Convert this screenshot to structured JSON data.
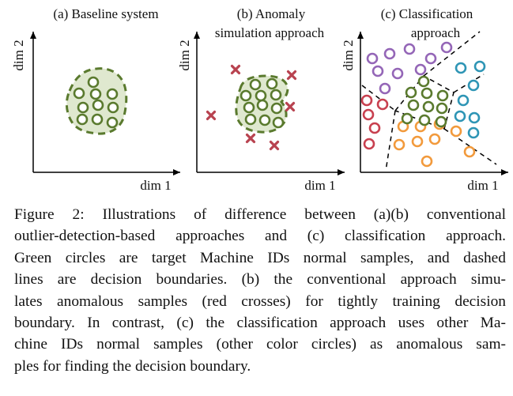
{
  "figure": {
    "panels": [
      {
        "title_lines": [
          "(a) Baseline system"
        ],
        "xlabel": "dim 1",
        "ylabel": "dim 2"
      },
      {
        "title_lines": [
          "(b) Anomaly",
          "simulation approach"
        ],
        "xlabel": "dim 1",
        "ylabel": "dim 2"
      },
      {
        "title_lines": [
          "(c) Classification",
          "approach"
        ],
        "xlabel": "dim 1",
        "ylabel": "dim 2"
      }
    ],
    "colors": {
      "green": "#5a7a2e",
      "green_fill": "#dfe8cf",
      "red": "#c8404f",
      "cross": "#b8424f",
      "purple": "#9466b7",
      "teal": "#2e95b5",
      "orange": "#f29a3c",
      "axis": "#000000"
    }
  },
  "caption": {
    "lines": [
      "Figure 2: Illustrations of difference between (a)(b) conventional",
      "outlier-detection-based approaches and (c) classification approach.",
      "Green circles are target Machine IDs normal samples, and dashed",
      "lines are decision boundaries. (b) the conventional approach simu-",
      "lates anomalous samples (red crosses) for tightly training decision",
      "boundary. In contrast, (c) the classification approach uses other Ma-",
      "chine IDs normal samples (other color circles) as anomalous sam-",
      "ples for finding the decision boundary."
    ]
  }
}
